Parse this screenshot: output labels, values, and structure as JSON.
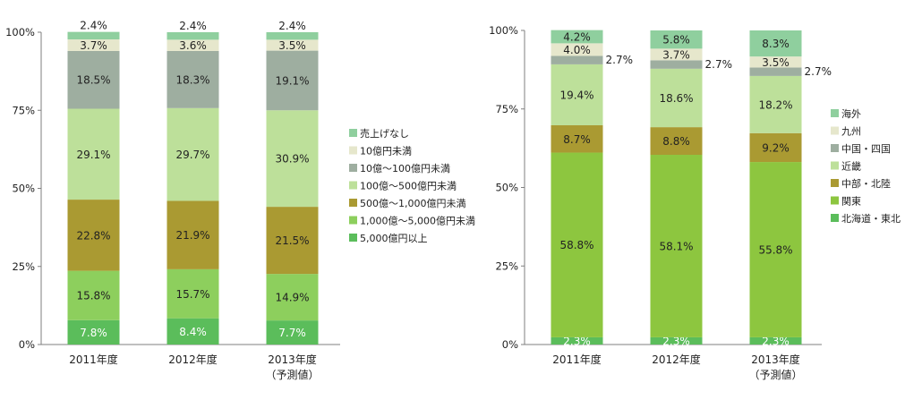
{
  "chart_data": [
    {
      "type": "bar",
      "stacked": true,
      "percent": true,
      "categories": [
        "2011年度",
        "2012年度",
        "2013年度"
      ],
      "category_notes": [
        "",
        "",
        "（予測値）"
      ],
      "yticks": [
        "0%",
        "25%",
        "50%",
        "75%",
        "100%"
      ],
      "ylim": [
        0,
        100
      ],
      "legend_position": "right",
      "series": [
        {
          "name": "5,000億円以上",
          "color": "#5bbd5b",
          "values": [
            7.8,
            8.4,
            7.7
          ],
          "labels": [
            "7.8%",
            "8.4%",
            "7.7%"
          ],
          "label_color": "#ffffff"
        },
        {
          "name": "1,000億～5,000億円未満",
          "color": "#8dcf5d",
          "values": [
            15.8,
            15.7,
            14.9
          ],
          "labels": [
            "15.8%",
            "15.7%",
            "14.9%"
          ],
          "label_color": "#222222"
        },
        {
          "name": "500億～1,000億円未満",
          "color": "#aa9a32",
          "values": [
            22.8,
            21.9,
            21.5
          ],
          "labels": [
            "22.8%",
            "21.9%",
            "21.5%"
          ],
          "label_color": "#222222"
        },
        {
          "name": "100億～500億円未満",
          "color": "#bde09a",
          "values": [
            29.1,
            29.7,
            30.9
          ],
          "labels": [
            "29.1%",
            "29.7%",
            "30.9%"
          ],
          "label_color": "#222222"
        },
        {
          "name": "10億～100億円未満",
          "color": "#9eaea0",
          "values": [
            18.5,
            18.3,
            19.1
          ],
          "labels": [
            "18.5%",
            "18.3%",
            "19.1%"
          ],
          "label_color": "#222222"
        },
        {
          "name": "10億円未満",
          "color": "#e6e7cc",
          "values": [
            3.7,
            3.6,
            3.5
          ],
          "labels": [
            "3.7%",
            "3.6%",
            "3.5%"
          ],
          "label_color": "#222222"
        },
        {
          "name": "売上げなし",
          "color": "#8fcf9e",
          "values": [
            2.4,
            2.4,
            2.4
          ],
          "labels": [
            "2.4%",
            "2.4%",
            "2.4%"
          ],
          "label_color": "#222222",
          "label_outside": "above"
        }
      ]
    },
    {
      "type": "bar",
      "stacked": true,
      "percent": true,
      "categories": [
        "2011年度",
        "2012年度",
        "2013年度"
      ],
      "category_notes": [
        "",
        "",
        "（予測値）"
      ],
      "yticks": [
        "0%",
        "25%",
        "50%",
        "75%",
        "100%"
      ],
      "ylim": [
        0,
        100
      ],
      "legend_position": "right",
      "series": [
        {
          "name": "北海道・東北",
          "color": "#5bbd5b",
          "values": [
            2.3,
            2.3,
            2.3
          ],
          "labels": [
            "2.3%",
            "2.3%",
            "2.3%"
          ],
          "label_color": "#ffffff"
        },
        {
          "name": "関東",
          "color": "#8dc63f",
          "values": [
            58.8,
            58.1,
            55.8
          ],
          "labels": [
            "58.8%",
            "58.1%",
            "55.8%"
          ],
          "label_color": "#222222"
        },
        {
          "name": "中部・北陸",
          "color": "#aa9a32",
          "values": [
            8.7,
            8.8,
            9.2
          ],
          "labels": [
            "8.7%",
            "8.8%",
            "9.2%"
          ],
          "label_color": "#222222"
        },
        {
          "name": "近畿",
          "color": "#bde09a",
          "values": [
            19.4,
            18.6,
            18.2
          ],
          "labels": [
            "19.4%",
            "18.6%",
            "18.2%"
          ],
          "label_color": "#222222"
        },
        {
          "name": "中国・四国",
          "color": "#9eaea0",
          "values": [
            2.7,
            2.7,
            2.7
          ],
          "labels": [
            "2.7%",
            "2.7%",
            "2.7%"
          ],
          "label_color": "#222222",
          "label_outside": "right"
        },
        {
          "name": "九州",
          "color": "#e6e7cc",
          "values": [
            4.0,
            3.7,
            3.5
          ],
          "labels": [
            "4.0%",
            "3.7%",
            "3.5%"
          ],
          "label_color": "#222222"
        },
        {
          "name": "海外",
          "color": "#8fcf9e",
          "values": [
            4.2,
            5.8,
            8.3
          ],
          "labels": [
            "4.2%",
            "5.8%",
            "8.3%"
          ],
          "label_color": "#222222"
        }
      ]
    }
  ]
}
